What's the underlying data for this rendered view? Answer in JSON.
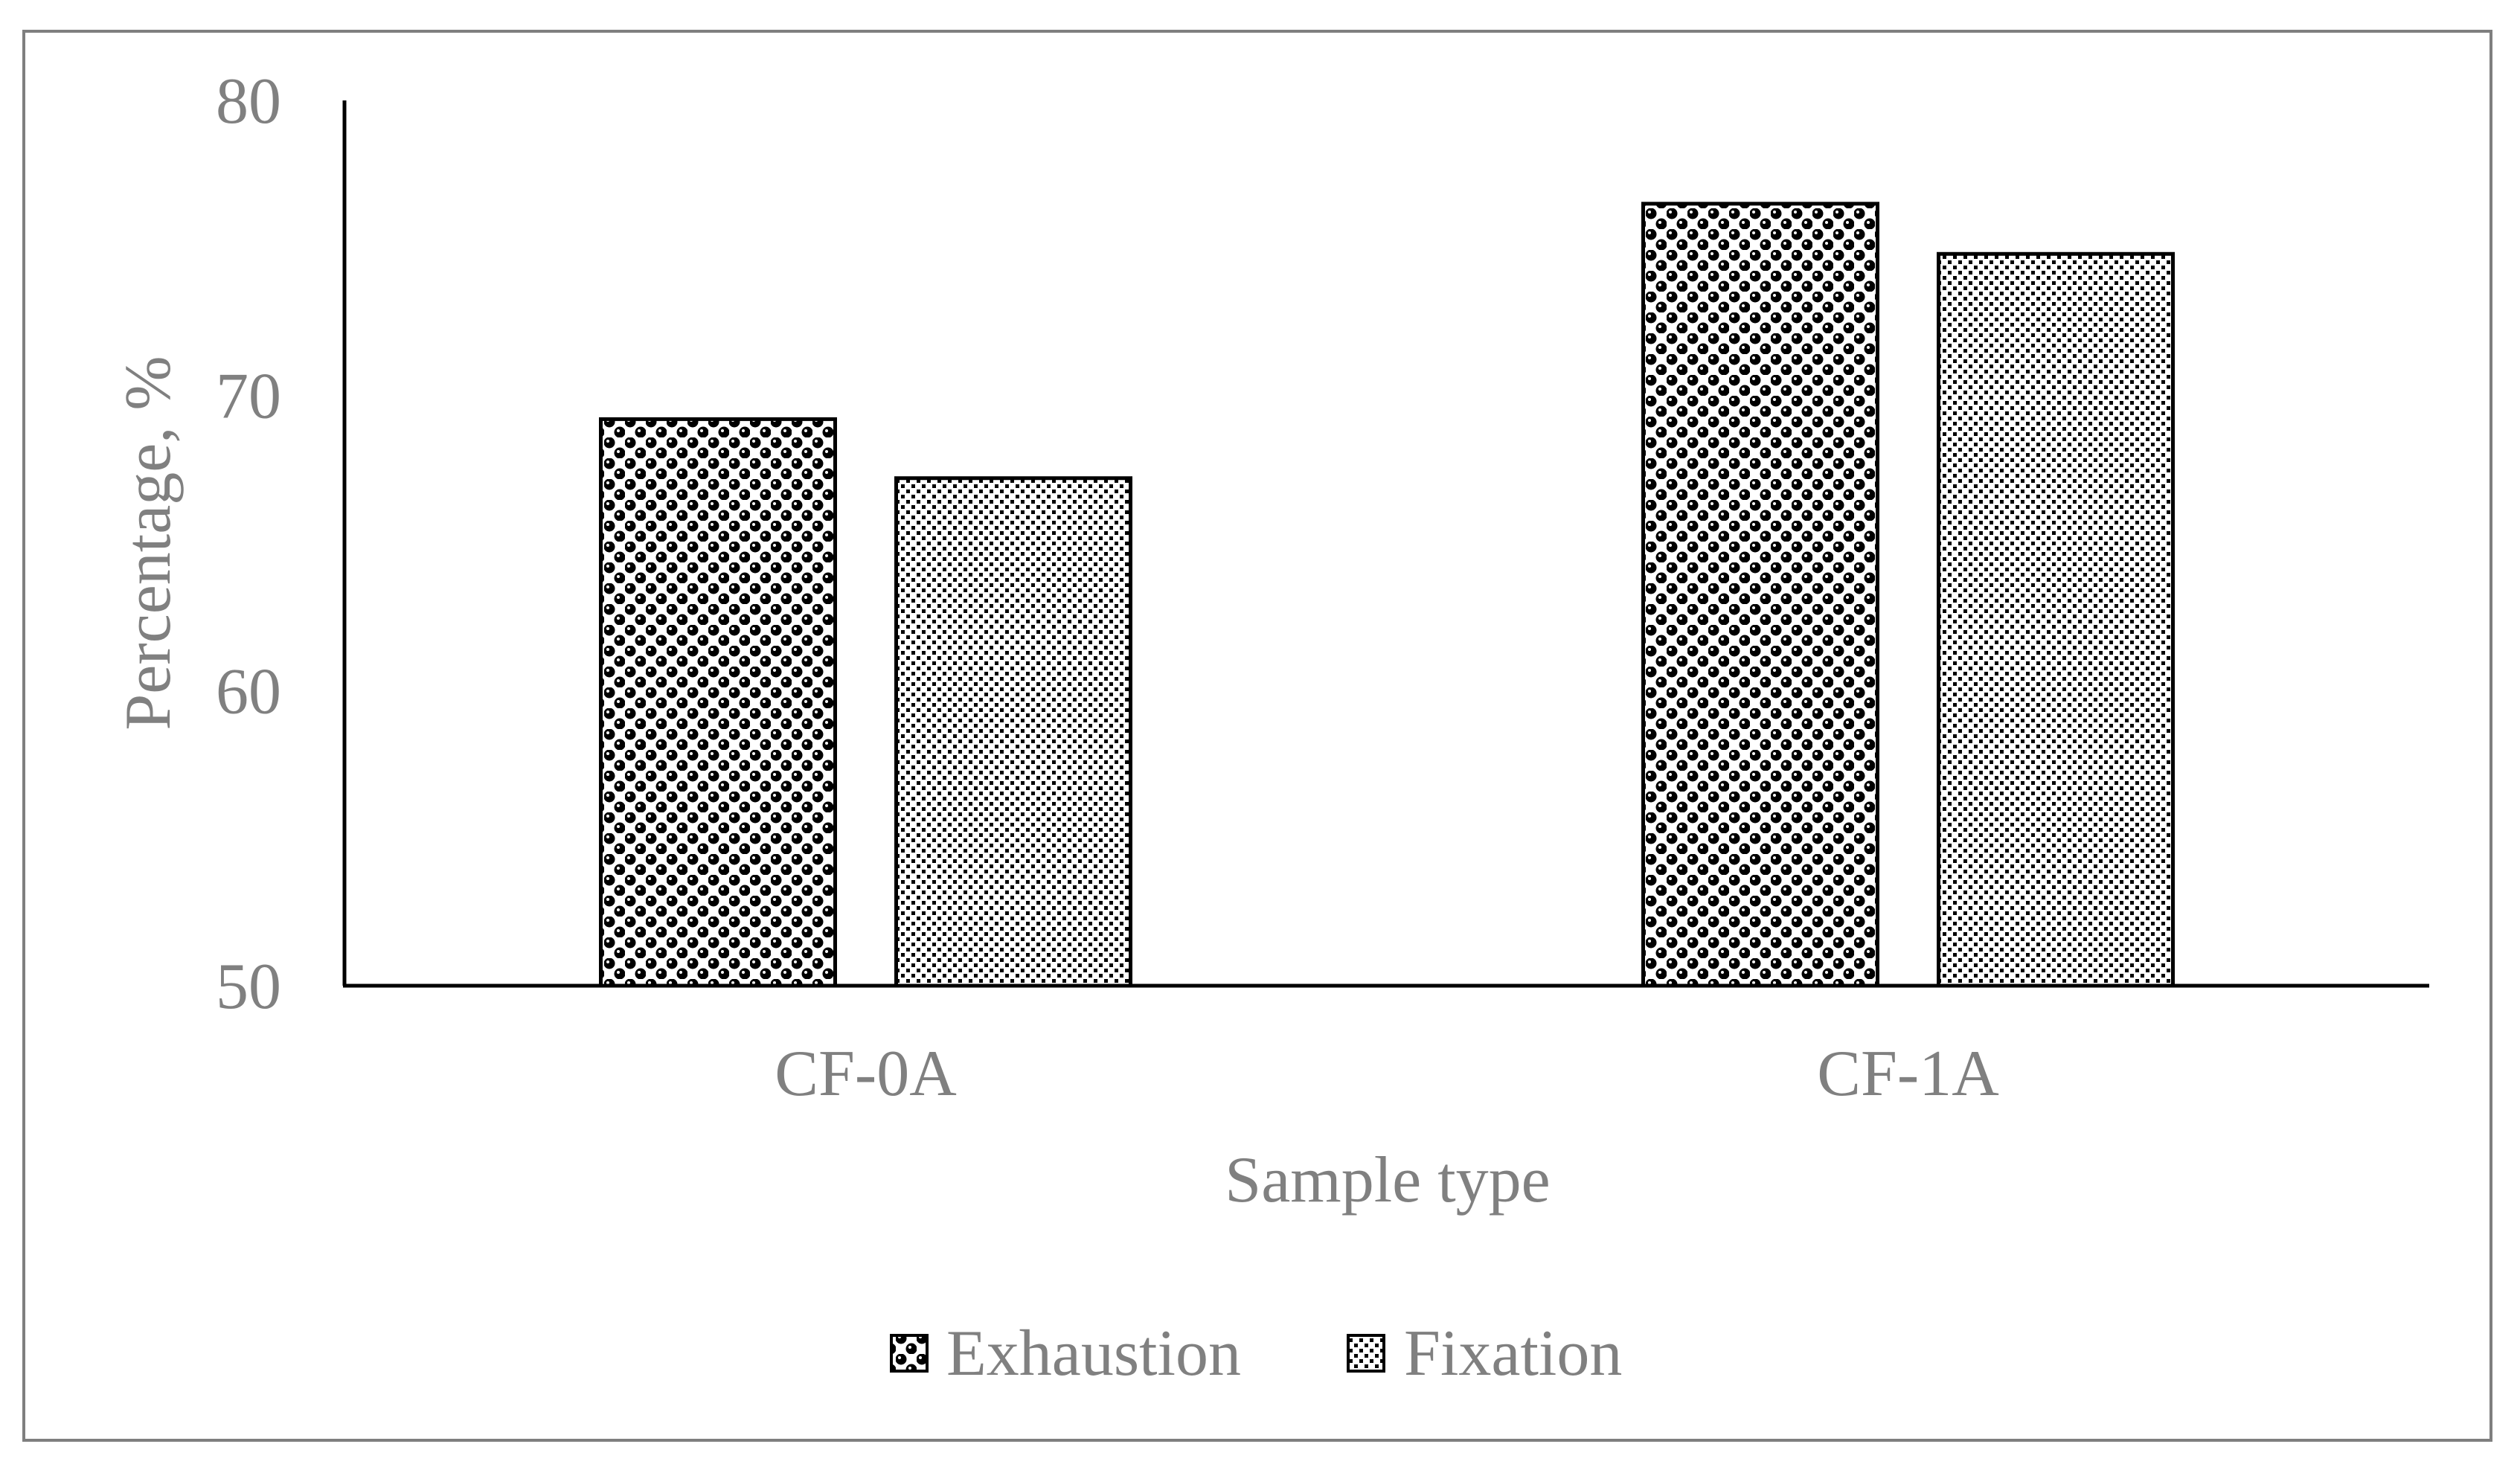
{
  "chart_data": {
    "type": "bar",
    "title": "",
    "categories": [
      "CF-0A",
      "CF-1A"
    ],
    "series": [
      {
        "name": "Exhaustion",
        "values": [
          69.2,
          76.5
        ],
        "pattern": "dark-dots"
      },
      {
        "name": "Fixation",
        "values": [
          67.2,
          74.8
        ],
        "pattern": "light-dots"
      }
    ],
    "xlabel": "Sample type",
    "ylabel": "Percentage, %",
    "ylim": [
      50,
      80
    ],
    "yticks": [
      50,
      60,
      70,
      80
    ],
    "grid": false,
    "legend_position": "bottom",
    "colors": {
      "axis": "#000000",
      "text": "#808080",
      "frame": "#7f7f7f",
      "bar_stroke": "#000000"
    }
  }
}
